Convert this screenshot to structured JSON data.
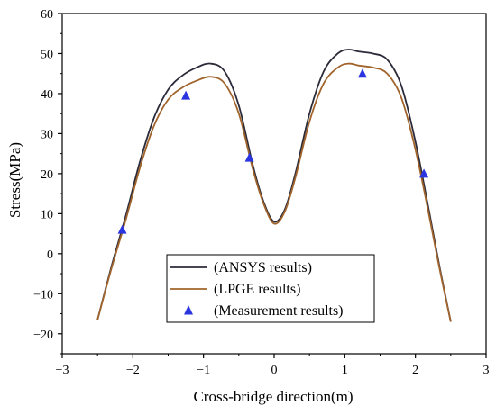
{
  "chart_data": {
    "type": "line",
    "xlabel": "Cross-bridge direction(m)",
    "ylabel": "Stress(MPa)",
    "xlim": [
      -3,
      3
    ],
    "ylim": [
      -25,
      60
    ],
    "xticks": [
      -3,
      -2,
      -1,
      0,
      1,
      2,
      3
    ],
    "yticks": [
      -20,
      -10,
      0,
      10,
      20,
      30,
      40,
      50,
      60
    ],
    "grid": false,
    "legend_position": "bottom-center",
    "series": [
      {
        "name": "(ANSYS results)",
        "kind": "line",
        "color": "#2b2b3a",
        "x": [
          -2.5,
          -2.3,
          -2.1,
          -1.9,
          -1.7,
          -1.5,
          -1.3,
          -1.1,
          -0.9,
          -0.7,
          -0.5,
          -0.3,
          -0.15,
          0.0,
          0.15,
          0.3,
          0.5,
          0.7,
          0.9,
          1.05,
          1.2,
          1.4,
          1.6,
          1.8,
          2.0,
          2.2,
          2.35,
          2.5
        ],
        "y": [
          -16.5,
          -3.0,
          9.5,
          23.0,
          34.0,
          41.0,
          44.5,
          46.5,
          47.5,
          45.5,
          37.0,
          22.0,
          13.0,
          8.0,
          11.0,
          20.0,
          35.0,
          45.5,
          50.0,
          51.0,
          50.5,
          50.0,
          48.5,
          42.0,
          28.0,
          10.0,
          -4.0,
          -17.0
        ]
      },
      {
        "name": "(LPGE results)",
        "kind": "line",
        "color": "#a0642c",
        "x": [
          -2.5,
          -2.3,
          -2.1,
          -1.9,
          -1.7,
          -1.5,
          -1.3,
          -1.1,
          -0.9,
          -0.7,
          -0.5,
          -0.3,
          -0.15,
          0.0,
          0.15,
          0.3,
          0.5,
          0.7,
          0.9,
          1.05,
          1.2,
          1.4,
          1.6,
          1.8,
          2.0,
          2.2,
          2.35,
          2.5
        ],
        "y": [
          -16.5,
          -3.5,
          8.5,
          21.5,
          32.0,
          38.5,
          41.5,
          43.2,
          44.2,
          42.5,
          35.0,
          21.0,
          12.5,
          7.5,
          10.5,
          19.0,
          33.0,
          42.5,
          46.5,
          47.5,
          47.0,
          46.5,
          45.0,
          39.0,
          26.0,
          9.0,
          -4.5,
          -17.0
        ]
      },
      {
        "name": "(Measurement results)",
        "kind": "scatter",
        "marker": "triangle",
        "color": "#2a35e0",
        "x": [
          -2.15,
          -1.25,
          -0.35,
          1.25,
          2.12
        ],
        "y": [
          6.0,
          39.5,
          24.0,
          45.0,
          20.0
        ]
      }
    ]
  }
}
